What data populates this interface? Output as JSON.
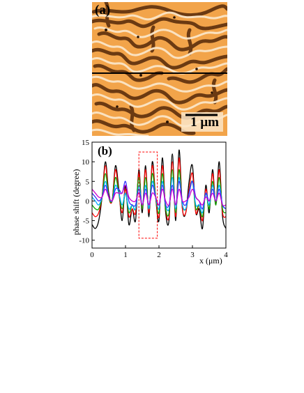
{
  "figure": {
    "panel_a": {
      "label": "(a)",
      "scale_bar_label": "1 μm",
      "colors": {
        "domain_light": "#fbe6c8",
        "domain_mid": "#f2a44a",
        "domain_dark": "#6b3a12",
        "line_profile": "#000000"
      }
    },
    "panel_b": {
      "label": "(b)"
    }
  },
  "chart_data": {
    "type": "line",
    "title": "",
    "label": "(b)",
    "xlabel": "x (μm)",
    "ylabel": "phase shift (degree)",
    "xlim": [
      0,
      4
    ],
    "ylim": [
      -12,
      15
    ],
    "xticks": [
      0,
      1,
      2,
      3,
      4
    ],
    "yticks": [
      -10,
      -5,
      0,
      5,
      10,
      15
    ],
    "grid": false,
    "legend": "none",
    "highlight_region": {
      "x": [
        1.4,
        1.95
      ],
      "y": [
        -9.5,
        12.5
      ],
      "style": "dashed",
      "color": "#ff0000"
    },
    "x": [
      0.0,
      0.1,
      0.2,
      0.3,
      0.4,
      0.5,
      0.6,
      0.7,
      0.8,
      0.9,
      1.0,
      1.1,
      1.2,
      1.3,
      1.4,
      1.5,
      1.6,
      1.7,
      1.8,
      1.9,
      2.0,
      2.1,
      2.2,
      2.3,
      2.4,
      2.5,
      2.6,
      2.7,
      2.8,
      2.9,
      3.0,
      3.1,
      3.2,
      3.3,
      3.4,
      3.5,
      3.6,
      3.7,
      3.8,
      3.9,
      4.0
    ],
    "series": [
      {
        "color": "#000000",
        "values": [
          -6,
          -7,
          -5,
          1,
          10,
          2,
          0,
          9,
          3,
          -5,
          4,
          -6,
          -2,
          -5,
          8,
          -3,
          9,
          -4,
          10,
          1,
          -5,
          11,
          -3,
          -5,
          12,
          -5,
          13,
          -2,
          -3,
          5,
          9,
          -3,
          -2,
          -7,
          4,
          -3,
          8,
          -1,
          10,
          -4,
          -7
        ]
      },
      {
        "color": "#ff0000",
        "values": [
          -3,
          -4,
          -3,
          1,
          9,
          1,
          0,
          8,
          2,
          -3,
          3,
          -4,
          -2,
          -3,
          7,
          -2,
          8,
          -3,
          9,
          1,
          -4,
          9,
          -2,
          -4,
          10,
          -4,
          11,
          -2,
          -3,
          3,
          7,
          -3,
          -1,
          -5,
          3,
          -2,
          7,
          -1,
          8,
          -3,
          -4
        ]
      },
      {
        "color": "#00aa00",
        "values": [
          -1,
          -2,
          -2,
          1,
          7,
          1,
          0,
          6,
          2,
          -2,
          2,
          -3,
          -1,
          -2,
          6,
          -2,
          6,
          -2,
          7,
          1,
          -3,
          7,
          -2,
          -3,
          8,
          -3,
          8,
          -1,
          -2,
          2,
          5,
          -2,
          -1,
          -4,
          2,
          -2,
          5,
          -1,
          6,
          -2,
          -3
        ]
      },
      {
        "color": "#00aaff",
        "values": [
          1,
          0,
          -1,
          1,
          5,
          1,
          0,
          4,
          2,
          -1,
          2,
          -2,
          -1,
          -2,
          4,
          -1,
          4,
          -2,
          5,
          1,
          -2,
          5,
          -1,
          -2,
          6,
          -2,
          6,
          -1,
          -2,
          2,
          5,
          -1,
          -1,
          -3,
          2,
          -1,
          4,
          0,
          4,
          -1,
          -2
        ]
      },
      {
        "color": "#3333ff",
        "values": [
          2,
          1,
          0,
          1,
          4,
          1,
          0,
          3,
          3,
          2,
          5,
          0,
          -1,
          -1,
          3,
          -1,
          3,
          -1,
          4,
          1,
          -1,
          4,
          -1,
          -1,
          4,
          -1,
          5,
          0,
          -1,
          2,
          5,
          1,
          0,
          -2,
          2,
          0,
          3,
          0,
          3,
          -1,
          -2
        ]
      },
      {
        "color": "#cc00cc",
        "values": [
          3,
          2,
          1,
          1,
          3,
          1,
          0,
          2,
          2,
          2,
          4,
          1,
          0,
          0,
          2,
          -1,
          2,
          -1,
          2,
          1,
          -1,
          3,
          0,
          -1,
          3,
          -1,
          3,
          0,
          0,
          1,
          3,
          1,
          0,
          -1,
          1,
          0,
          2,
          0,
          2,
          -1,
          -1
        ]
      }
    ]
  }
}
